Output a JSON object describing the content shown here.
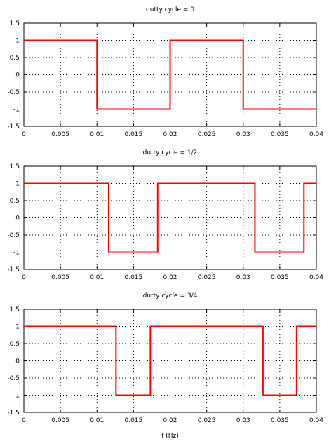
{
  "chart_data": [
    {
      "type": "line",
      "title": "dutty cycle = 0",
      "xlim": [
        0,
        0.04
      ],
      "ylim": [
        -1.5,
        1.5
      ],
      "grid": true,
      "xticks": [
        "0",
        "0.005",
        "0.01",
        "0.015",
        "0.02",
        "0.025",
        "0.03",
        "0.035",
        "0.04"
      ],
      "yticks": [
        "1.5",
        "1",
        "0.5",
        "0",
        "-0.5",
        "-1",
        "-1.5"
      ],
      "series": [
        {
          "x": [
            0,
            0.01,
            0.01,
            0.02,
            0.02,
            0.03,
            0.03,
            0.04
          ],
          "y": [
            1,
            1,
            -1,
            -1,
            1,
            1,
            -1,
            -1
          ],
          "color": "#ff0000"
        }
      ]
    },
    {
      "type": "line",
      "title": "dutty cycle = 1/2",
      "xlim": [
        0,
        0.04
      ],
      "ylim": [
        -1.5,
        1.5
      ],
      "grid": true,
      "xticks": [
        "0",
        "0.005",
        "0.01",
        "0.015",
        "0.02",
        "0.025",
        "0.03",
        "0.035",
        "0.04"
      ],
      "yticks": [
        "1.5",
        "1",
        "0.5",
        "0",
        "-0.5",
        "-1",
        "-1.5"
      ],
      "series": [
        {
          "x": [
            0,
            0.0116,
            0.0116,
            0.0183,
            0.0183,
            0.0316,
            0.0316,
            0.0383,
            0.0383,
            0.04
          ],
          "y": [
            1,
            1,
            -1,
            -1,
            1,
            1,
            -1,
            -1,
            1,
            1
          ],
          "color": "#ff0000"
        }
      ]
    },
    {
      "type": "line",
      "title": "dutty cycle = 3/4",
      "xlabel": "f (Hz)",
      "xlim": [
        0,
        0.04
      ],
      "ylim": [
        -1.5,
        1.5
      ],
      "grid": true,
      "xticks": [
        "0",
        "0.005",
        "0.01",
        "0.015",
        "0.02",
        "0.025",
        "0.03",
        "0.035",
        "0.04"
      ],
      "yticks": [
        "1.5",
        "1",
        "0.5",
        "0",
        "-0.5",
        "-1",
        "-1.5"
      ],
      "series": [
        {
          "x": [
            0,
            0.0126,
            0.0126,
            0.0173,
            0.0173,
            0.0327,
            0.0327,
            0.0373,
            0.0373,
            0.04
          ],
          "y": [
            1,
            1,
            -1,
            -1,
            1,
            1,
            -1,
            -1,
            1,
            1
          ],
          "color": "#ff0000"
        }
      ]
    }
  ]
}
